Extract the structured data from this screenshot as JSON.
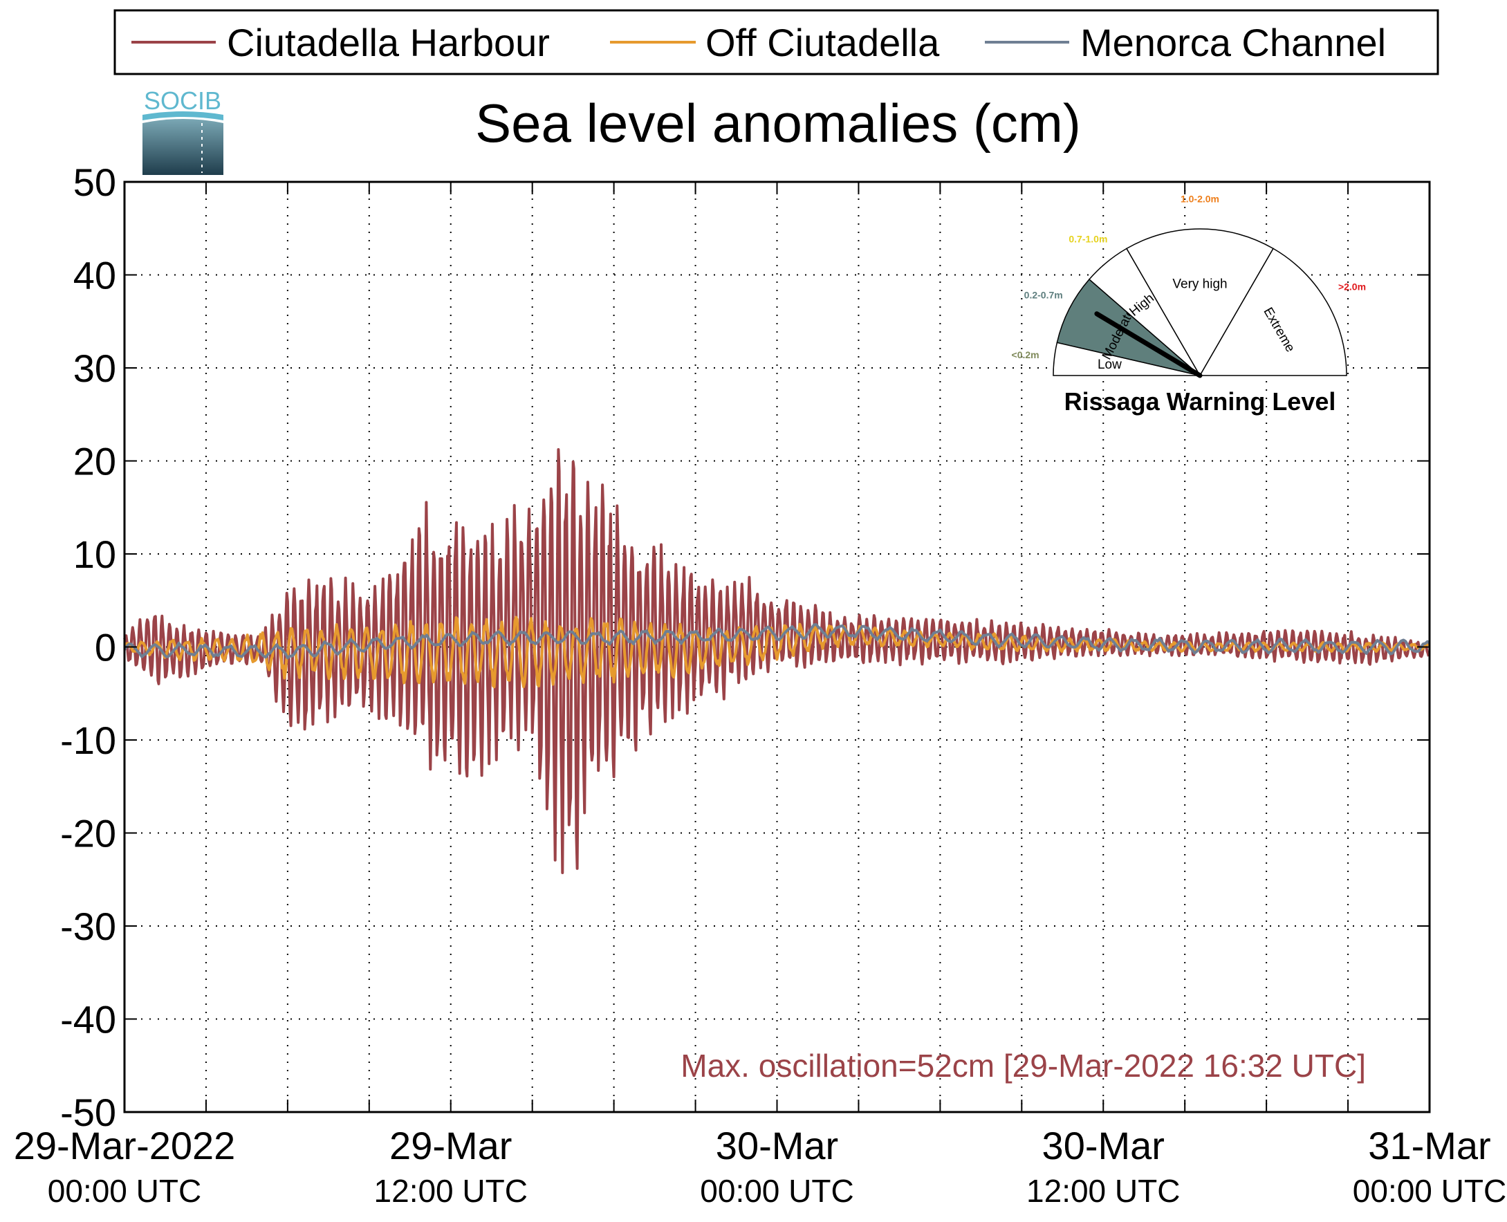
{
  "title": "Sea level anomalies (cm)",
  "logo_text": "SOCIB",
  "legend": [
    {
      "label": "Ciutadella Harbour",
      "color": "#9b4348"
    },
    {
      "label": "Off Ciutadella",
      "color": "#e69a2e"
    },
    {
      "label": "Menorca Channel",
      "color": "#6f7f93"
    }
  ],
  "annotation": "Max. oscillation=52cm [29-Mar-2022 16:32 UTC]",
  "gauge": {
    "title": "Rissaga Warning Level",
    "active_level": "Moderate",
    "levels": [
      {
        "name": "Low",
        "range": "<0.2m",
        "range_color": "#7f8a5a"
      },
      {
        "name": "Moderate",
        "range": "0.2-0.7m",
        "range_color": "#5f7f7f",
        "fill": "#5f7f7c"
      },
      {
        "name": "High",
        "range": "0.7-1.0m",
        "range_color": "#e6d21e"
      },
      {
        "name": "Very high",
        "range": "1.0-2.0m",
        "range_color": "#ee7f1c"
      },
      {
        "name": "Extreme",
        "range": ">2.0m",
        "range_color": "#e0191c"
      }
    ],
    "needle_value_m": 0.52
  },
  "chart_data": {
    "type": "line",
    "title": "Sea level anomalies (cm)",
    "xlabel": "",
    "ylabel": "",
    "ylim": [
      -50,
      50
    ],
    "yticks": [
      50,
      40,
      30,
      20,
      10,
      0,
      -10,
      -20,
      -30,
      -40,
      -50
    ],
    "x_unit": "hours since 29-Mar-2022 00:00 UTC",
    "xlim_hours": [
      0,
      48
    ],
    "xticks": [
      {
        "hour": 0,
        "line1": "29-Mar-2022",
        "line2": "00:00 UTC"
      },
      {
        "hour": 12,
        "line1": "29-Mar",
        "line2": "12:00 UTC"
      },
      {
        "hour": 24,
        "line1": "30-Mar",
        "line2": "00:00 UTC"
      },
      {
        "hour": 36,
        "line1": "30-Mar",
        "line2": "12:00 UTC"
      },
      {
        "hour": 48,
        "line1": "31-Mar",
        "line2": "00:00 UTC"
      }
    ],
    "grid": true,
    "legend_position": "top",
    "series": [
      {
        "name": "Ciutadella Harbour",
        "color": "#9b4348",
        "envelope_hours": [
          0,
          1,
          2,
          3,
          4,
          5,
          6,
          6.5,
          7,
          8,
          9,
          10,
          11,
          12,
          13,
          14,
          15,
          16,
          16.5,
          17,
          18,
          19,
          20,
          21,
          22,
          23,
          24,
          25,
          26,
          27,
          28,
          30,
          32,
          34,
          36,
          38,
          40,
          42,
          44,
          46,
          48
        ],
        "envelope_upper": [
          1.5,
          4.5,
          3,
          2,
          1.5,
          1.5,
          7.5,
          8.5,
          8,
          8,
          7,
          10,
          17,
          16,
          15,
          14,
          19,
          24,
          24,
          22,
          16,
          13,
          11,
          9,
          8,
          8,
          6,
          5,
          4,
          3.5,
          3.5,
          3.5,
          3,
          2.5,
          2,
          1.5,
          1.5,
          2,
          2,
          1.5,
          0.5
        ],
        "envelope_lower": [
          -1.5,
          -4.5,
          -4,
          -3,
          -2,
          -2,
          -10,
          -11,
          -9,
          -8,
          -8,
          -9,
          -15,
          -17,
          -15,
          -12,
          -14,
          -27,
          -26,
          -20,
          -15,
          -11,
          -9,
          -7,
          -6,
          -4,
          -3,
          -2.5,
          -2,
          -2,
          -2,
          -2,
          -2,
          -1.5,
          -1,
          -1,
          -1,
          -1.5,
          -2,
          -2,
          -1
        ]
      },
      {
        "name": "Off Ciutadella",
        "color": "#e69a2e",
        "envelope_hours": [
          0,
          2,
          4,
          6,
          8,
          10,
          12,
          14,
          16,
          18,
          20,
          22,
          24,
          26,
          28,
          30,
          32,
          34,
          36,
          38,
          40,
          42,
          44,
          46,
          48
        ],
        "envelope_upper": [
          0.5,
          1,
          1,
          2.5,
          2.5,
          3,
          3.5,
          3.5,
          3.5,
          3.5,
          3,
          2.5,
          2.5,
          2.5,
          2,
          1.5,
          1.5,
          1,
          1,
          0.5,
          0.5,
          0.5,
          0.5,
          0.5,
          0.3
        ],
        "envelope_lower": [
          -0.5,
          -1.5,
          -1.5,
          -3.5,
          -3.5,
          -4,
          -4.5,
          -4.5,
          -4.5,
          -4,
          -3.5,
          -2.5,
          -1.5,
          0,
          0,
          0,
          -0.5,
          -0.5,
          -0.5,
          -0.5,
          -0.5,
          -0.5,
          -0.5,
          -0.5,
          -0.3
        ]
      },
      {
        "name": "Menorca Channel",
        "color": "#6f7f93",
        "trend_hours": [
          0,
          6,
          10,
          14,
          18,
          22,
          24,
          26,
          28,
          32,
          36,
          40,
          44,
          48
        ],
        "trend_values": [
          -0.3,
          -0.5,
          0.5,
          1,
          1,
          1.2,
          1.5,
          1.8,
          1.5,
          0.8,
          0.3,
          0.1,
          0.1,
          0
        ],
        "amplitude": 0.8
      }
    ]
  }
}
